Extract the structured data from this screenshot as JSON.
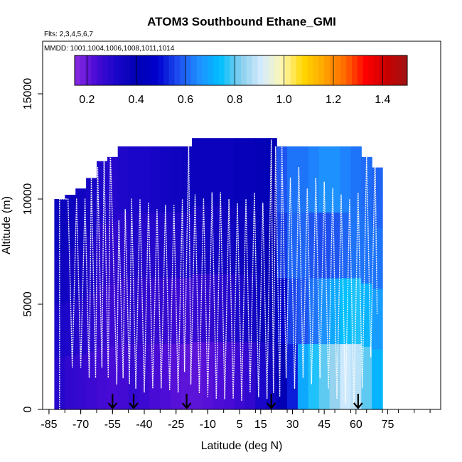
{
  "chart_data": {
    "type": "heatmap",
    "title": "ATOM3 Southbound Ethane_GMI",
    "subtitle_flights": "Flts: 2,3,4,5,6,7",
    "subtitle_dates": "MMDD: 1001,1004,1006,1008,1011,1014",
    "xlabel": "Latitude (deg N)",
    "ylabel": "Altitude (m)",
    "xlim": [
      -88,
      100
    ],
    "ylim": [
      0,
      17500
    ],
    "x_ticks": [
      -85,
      -70,
      -55,
      -40,
      -25,
      -10,
      5,
      15,
      30,
      45,
      60,
      75
    ],
    "x_tick_labels": [
      "-85",
      "-70",
      "-55",
      "-40",
      "-25",
      "-10",
      "5",
      "15",
      "30",
      "45",
      "60",
      "75"
    ],
    "y_ticks": [
      0,
      5000,
      10000,
      15000
    ],
    "y_tick_labels": [
      "0",
      "5000",
      "10000",
      "15000"
    ],
    "colorbar": {
      "range": [
        0.15,
        1.5
      ],
      "ticks": [
        0.2,
        0.4,
        0.6,
        0.8,
        1.0,
        1.2,
        1.4
      ],
      "tick_labels": [
        "0.2",
        "0.4",
        "0.6",
        "0.8",
        "1.0",
        "1.2",
        "1.4"
      ],
      "colors": [
        "#8a2be2",
        "#4b0bd6",
        "#1a06c8",
        "#0000b4",
        "#0000cd",
        "#1e4ff0",
        "#1e90ff",
        "#00bfff",
        "#87ceeb",
        "#d6ecff",
        "#fff7b0",
        "#ffd700",
        "#ffa500",
        "#ff6a00",
        "#ff0000",
        "#c80000",
        "#a01414"
      ]
    },
    "grid": false,
    "legend": "colorbar top",
    "columns": [
      {
        "lat": -80,
        "top": 10000,
        "values": [
          0.3,
          0.32,
          0.35,
          0.37
        ]
      },
      {
        "lat": -75,
        "top": 10200,
        "values": [
          0.28,
          0.31,
          0.34,
          0.36
        ]
      },
      {
        "lat": -70,
        "top": 10500,
        "values": [
          0.27,
          0.3,
          0.33,
          0.35
        ]
      },
      {
        "lat": -65,
        "top": 11000,
        "values": [
          0.26,
          0.29,
          0.31,
          0.33
        ]
      },
      {
        "lat": -60,
        "top": 11800,
        "values": [
          0.25,
          0.27,
          0.29,
          0.31
        ]
      },
      {
        "lat": -55,
        "top": 12000,
        "values": [
          0.24,
          0.26,
          0.28,
          0.3
        ]
      },
      {
        "lat": -50,
        "top": 12500,
        "values": [
          0.25,
          0.27,
          0.29,
          0.31
        ]
      },
      {
        "lat": -45,
        "top": 12500,
        "values": [
          0.27,
          0.29,
          0.31,
          0.32
        ]
      },
      {
        "lat": -40,
        "top": 12500,
        "values": [
          0.26,
          0.28,
          0.3,
          0.32
        ]
      },
      {
        "lat": -35,
        "top": 12500,
        "values": [
          0.24,
          0.27,
          0.3,
          0.33
        ]
      },
      {
        "lat": -30,
        "top": 12500,
        "values": [
          0.23,
          0.27,
          0.31,
          0.34
        ]
      },
      {
        "lat": -25,
        "top": 12500,
        "values": [
          0.22,
          0.26,
          0.31,
          0.35
        ]
      },
      {
        "lat": -20,
        "top": 12500,
        "values": [
          0.21,
          0.26,
          0.32,
          0.36
        ]
      },
      {
        "lat": -15,
        "top": 12900,
        "values": [
          0.21,
          0.27,
          0.33,
          0.37
        ]
      },
      {
        "lat": -10,
        "top": 12900,
        "values": [
          0.22,
          0.28,
          0.34,
          0.37
        ]
      },
      {
        "lat": -5,
        "top": 12900,
        "values": [
          0.23,
          0.29,
          0.34,
          0.37
        ]
      },
      {
        "lat": 0,
        "top": 12900,
        "values": [
          0.24,
          0.3,
          0.35,
          0.37
        ]
      },
      {
        "lat": 5,
        "top": 12900,
        "values": [
          0.26,
          0.32,
          0.36,
          0.38
        ]
      },
      {
        "lat": 10,
        "top": 12900,
        "values": [
          0.28,
          0.34,
          0.37,
          0.38
        ]
      },
      {
        "lat": 15,
        "top": 12900,
        "values": [
          0.32,
          0.37,
          0.38,
          0.39
        ]
      },
      {
        "lat": 20,
        "top": 12900,
        "values": [
          0.35,
          0.38,
          0.39,
          0.4
        ]
      },
      {
        "lat": 25,
        "top": 12500,
        "values": [
          0.4,
          0.48,
          0.55,
          0.58
        ]
      },
      {
        "lat": 30,
        "top": 12500,
        "values": [
          0.52,
          0.56,
          0.6,
          0.62
        ]
      },
      {
        "lat": 35,
        "top": 12500,
        "values": [
          0.7,
          0.58,
          0.6,
          0.62
        ]
      },
      {
        "lat": 40,
        "top": 12500,
        "values": [
          0.76,
          0.62,
          0.58,
          0.64
        ]
      },
      {
        "lat": 45,
        "top": 12500,
        "values": [
          0.8,
          0.66,
          0.57,
          0.66
        ]
      },
      {
        "lat": 50,
        "top": 12500,
        "values": [
          0.84,
          0.7,
          0.58,
          0.66
        ]
      },
      {
        "lat": 55,
        "top": 12500,
        "values": [
          0.9,
          0.74,
          0.6,
          0.64
        ]
      },
      {
        "lat": 60,
        "top": 12500,
        "values": [
          0.88,
          0.76,
          0.62,
          0.62
        ]
      },
      {
        "lat": 65,
        "top": 12000,
        "values": [
          0.8,
          0.72,
          0.62,
          0.61
        ]
      },
      {
        "lat": 70,
        "top": 11500,
        "values": [
          0.72,
          0.68,
          0.62,
          0.6
        ]
      }
    ],
    "flight_track": [
      [
        -80,
        0
      ],
      [
        -80,
        10000
      ],
      [
        -76,
        10000
      ],
      [
        -74,
        2000
      ],
      [
        -72,
        10000
      ],
      [
        -70,
        2000
      ],
      [
        -68,
        10000
      ],
      [
        -66,
        1500
      ],
      [
        -65,
        11000
      ],
      [
        -63,
        1500
      ],
      [
        -62,
        11500
      ],
      [
        -60,
        2000
      ],
      [
        -59,
        12000
      ],
      [
        -57,
        1500
      ],
      [
        -56,
        12200
      ],
      [
        -55,
        8800
      ],
      [
        -53,
        1200
      ],
      [
        -52,
        9000
      ],
      [
        -50,
        1500
      ],
      [
        -49,
        9500
      ],
      [
        -47,
        1200
      ],
      [
        -46,
        10000
      ],
      [
        -44,
        1000
      ],
      [
        -42,
        10000
      ],
      [
        -40,
        800
      ],
      [
        -38,
        9800
      ],
      [
        -36,
        1000
      ],
      [
        -34,
        9500
      ],
      [
        -32,
        1000
      ],
      [
        -30,
        9700
      ],
      [
        -28,
        900
      ],
      [
        -26,
        9700
      ],
      [
        -24,
        800
      ],
      [
        -22,
        10000
      ],
      [
        -21,
        1800
      ],
      [
        -19,
        12600
      ],
      [
        -18,
        1200
      ],
      [
        -16,
        10200
      ],
      [
        -14,
        800
      ],
      [
        -12,
        10000
      ],
      [
        -10,
        600
      ],
      [
        -8,
        10300
      ],
      [
        -6,
        500
      ],
      [
        -4,
        10300
      ],
      [
        -2,
        500
      ],
      [
        0,
        10000
      ],
      [
        2,
        500
      ],
      [
        4,
        9800
      ],
      [
        6,
        400
      ],
      [
        8,
        10000
      ],
      [
        10,
        800
      ],
      [
        12,
        10300
      ],
      [
        14,
        600
      ],
      [
        16,
        9800
      ],
      [
        18,
        500
      ],
      [
        20,
        12800
      ],
      [
        21,
        800
      ],
      [
        22,
        12500
      ],
      [
        24,
        600
      ],
      [
        25,
        12500
      ],
      [
        27,
        1500
      ],
      [
        29,
        11000
      ],
      [
        31,
        1000
      ],
      [
        33,
        11500
      ],
      [
        35,
        1500
      ],
      [
        37,
        10500
      ],
      [
        39,
        1200
      ],
      [
        41,
        11000
      ],
      [
        43,
        1500
      ],
      [
        45,
        10800
      ],
      [
        47,
        1000
      ],
      [
        49,
        10500
      ],
      [
        51,
        500
      ],
      [
        53,
        10200
      ],
      [
        55,
        300
      ],
      [
        57,
        10000
      ],
      [
        59,
        200
      ],
      [
        61,
        10300
      ],
      [
        63,
        1000
      ],
      [
        65,
        12000
      ],
      [
        67,
        2500
      ],
      [
        69,
        12000
      ],
      [
        70,
        4500
      ]
    ],
    "arrows_lat": [
      -55,
      -45,
      -20,
      20,
      61
    ]
  }
}
